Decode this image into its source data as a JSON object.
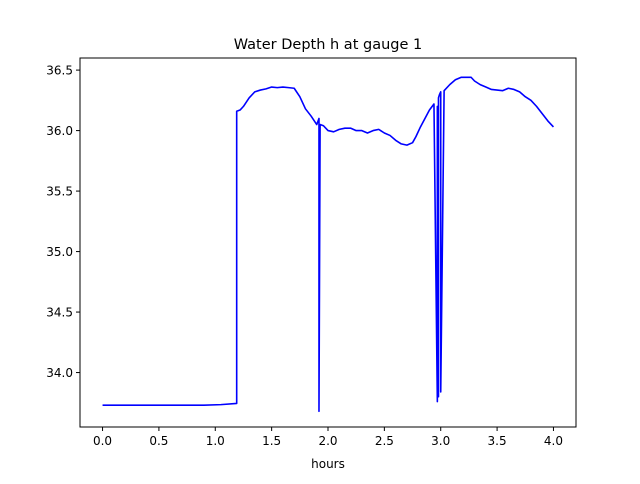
{
  "chart_data": {
    "type": "line",
    "title": "Water Depth h at gauge 1",
    "xlabel": "hours",
    "ylabel": "",
    "xlim": [
      -0.2,
      4.2
    ],
    "ylim": [
      33.55,
      36.6
    ],
    "xticks": [
      0.0,
      0.5,
      1.0,
      1.5,
      2.0,
      2.5,
      3.0,
      3.5,
      4.0
    ],
    "xtick_labels": [
      "0.0",
      "0.5",
      "1.0",
      "1.5",
      "2.0",
      "2.5",
      "3.0",
      "3.5",
      "4.0"
    ],
    "yticks": [
      34.0,
      34.5,
      35.0,
      35.5,
      36.0,
      36.5
    ],
    "ytick_labels": [
      "34.0",
      "34.5",
      "35.0",
      "35.5",
      "36.0",
      "36.5"
    ],
    "grid": false,
    "series": [
      {
        "color": "#0000ff",
        "x": [
          0.0,
          0.5,
          0.9,
          1.05,
          1.19,
          1.19,
          1.22,
          1.25,
          1.3,
          1.35,
          1.4,
          1.45,
          1.5,
          1.55,
          1.6,
          1.65,
          1.7,
          1.75,
          1.8,
          1.85,
          1.9,
          1.92,
          1.92,
          1.93,
          1.96,
          2.0,
          2.05,
          2.1,
          2.15,
          2.2,
          2.25,
          2.3,
          2.35,
          2.4,
          2.45,
          2.5,
          2.55,
          2.6,
          2.65,
          2.7,
          2.75,
          2.78,
          2.82,
          2.86,
          2.9,
          2.94,
          2.97,
          2.97,
          2.98,
          2.98,
          2.99,
          3.0,
          3.0,
          3.03,
          3.08,
          3.13,
          3.18,
          3.22,
          3.27,
          3.3,
          3.35,
          3.4,
          3.45,
          3.5,
          3.55,
          3.6,
          3.65,
          3.7,
          3.75,
          3.8,
          3.85,
          3.9,
          3.95,
          4.0
        ],
        "y": [
          33.73,
          33.73,
          33.73,
          33.735,
          33.745,
          36.16,
          36.17,
          36.2,
          36.27,
          36.32,
          36.335,
          36.345,
          36.36,
          36.355,
          36.36,
          36.355,
          36.35,
          36.28,
          36.18,
          36.12,
          36.05,
          36.1,
          33.68,
          36.05,
          36.04,
          36.0,
          35.99,
          36.01,
          36.02,
          36.02,
          36.0,
          36.0,
          35.98,
          36.0,
          36.01,
          35.98,
          35.96,
          35.92,
          35.89,
          35.88,
          35.9,
          35.95,
          36.03,
          36.1,
          36.17,
          36.22,
          33.76,
          36.2,
          33.8,
          36.27,
          36.3,
          36.32,
          33.84,
          36.33,
          36.38,
          36.42,
          36.44,
          36.44,
          36.44,
          36.41,
          36.38,
          36.36,
          36.34,
          36.335,
          36.33,
          36.35,
          36.34,
          36.32,
          36.28,
          36.25,
          36.2,
          36.14,
          36.08,
          36.03
        ]
      }
    ]
  }
}
